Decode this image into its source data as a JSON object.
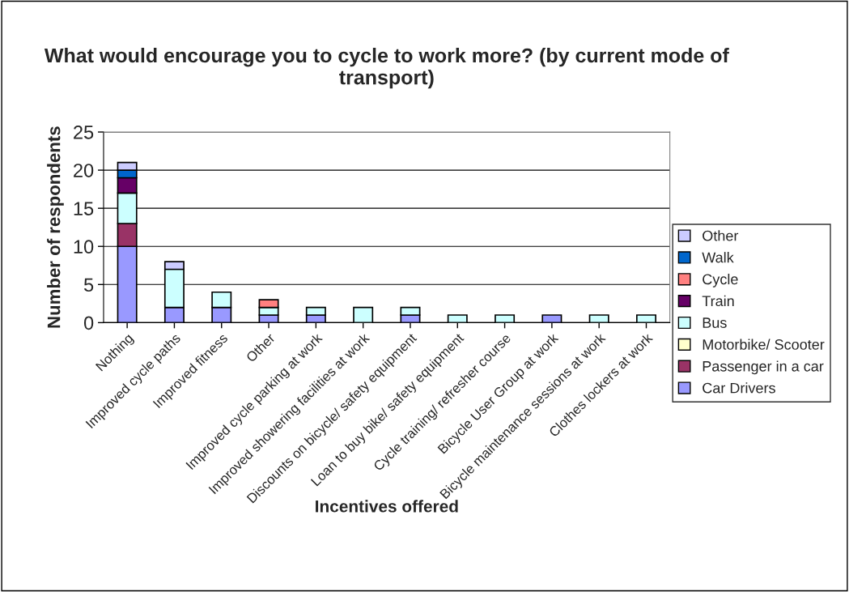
{
  "chart_data": {
    "type": "bar",
    "title": "What would encourage you to cycle to work more? (by current mode of transport)",
    "xlabel": "Incentives offered",
    "ylabel": "Number of respondents",
    "categories": [
      "Nothing",
      "Improved cycle paths",
      "Improved fitness",
      "Other",
      "Improved cycle parking at work",
      "Improved showering facilities at work",
      "Discounts on bicycle/ safety equipment",
      "Loan to buy bike/ safety equipment",
      "Cycle training/ refresher course",
      "Bicycle User Group at work",
      "Bicycle maintenance sessions at work",
      "Clothes lockers at work"
    ],
    "stacked": true,
    "ylim": [
      0,
      25
    ],
    "yticks": [
      0,
      5,
      10,
      15,
      20,
      25
    ],
    "grid": "y",
    "legend": "right",
    "series": [
      {
        "name": "Car Drivers",
        "color": "#9999ff",
        "values": [
          10,
          2,
          2,
          1,
          1,
          0,
          1,
          0,
          0,
          1,
          0,
          0
        ]
      },
      {
        "name": "Passenger in a car",
        "color": "#993366",
        "values": [
          3,
          0,
          0,
          0,
          0,
          0,
          0,
          0,
          0,
          0,
          0,
          0
        ]
      },
      {
        "name": "Motorbike/ Scooter",
        "color": "#ffffcc",
        "values": [
          0,
          0,
          0,
          0,
          0,
          0,
          0,
          0,
          0,
          0,
          0,
          0
        ]
      },
      {
        "name": "Bus",
        "color": "#ccffff",
        "values": [
          4,
          5,
          2,
          1,
          1,
          2,
          1,
          1,
          1,
          0,
          1,
          1
        ]
      },
      {
        "name": "Train",
        "color": "#660066",
        "values": [
          2,
          0,
          0,
          0,
          0,
          0,
          0,
          0,
          0,
          0,
          0,
          0
        ]
      },
      {
        "name": "Cycle",
        "color": "#ff8080",
        "values": [
          0,
          0,
          0,
          1,
          0,
          0,
          0,
          0,
          0,
          0,
          0,
          0
        ]
      },
      {
        "name": "Walk",
        "color": "#0066cc",
        "values": [
          1,
          0,
          0,
          0,
          0,
          0,
          0,
          0,
          0,
          0,
          0,
          0
        ]
      },
      {
        "name": "Other",
        "color": "#ccccff",
        "values": [
          1,
          1,
          0,
          0,
          0,
          0,
          0,
          0,
          0,
          0,
          0,
          0
        ]
      }
    ]
  }
}
